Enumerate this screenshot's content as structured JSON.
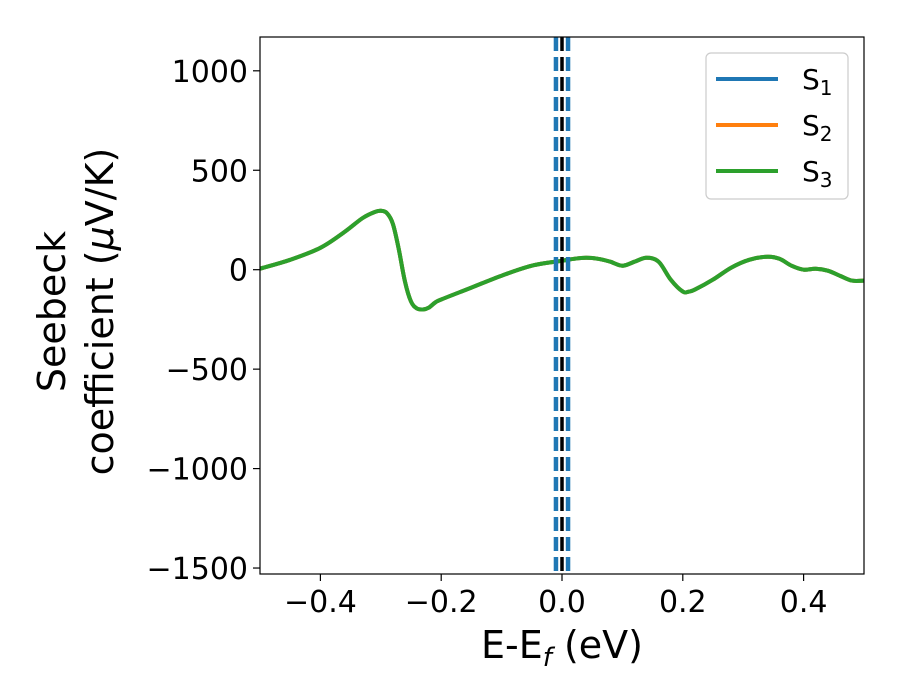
{
  "chart_data": {
    "type": "line",
    "xlabel": "E-E",
    "xlabel_sub": "f",
    "xlabel_unit": " (eV)",
    "ylabel_line1": "Seebeck",
    "ylabel_line2": "coefficient  (",
    "ylabel_mu": "μ",
    "ylabel_unit": "V/K)",
    "xlim": [
      -0.5,
      0.5
    ],
    "ylim": [
      -1530,
      1170
    ],
    "xticks": [
      -0.4,
      -0.2,
      0.0,
      0.2,
      0.4
    ],
    "xtick_labels": [
      "−0.4",
      "−0.2",
      "0.0",
      "0.2",
      "0.4"
    ],
    "yticks": [
      -1500,
      -1000,
      -500,
      0,
      500,
      1000
    ],
    "ytick_labels": [
      "−1500",
      "−1000",
      "−500",
      "0",
      "500",
      "1000"
    ],
    "grid": false,
    "legend_position": "top-right",
    "x": [
      -0.5,
      -0.45,
      -0.4,
      -0.36,
      -0.33,
      -0.31,
      -0.3,
      -0.29,
      -0.28,
      -0.27,
      -0.26,
      -0.25,
      -0.24,
      -0.23,
      -0.22,
      -0.21,
      -0.2,
      -0.15,
      -0.1,
      -0.05,
      0.0,
      0.02,
      0.04,
      0.06,
      0.08,
      0.1,
      0.12,
      0.14,
      0.16,
      0.18,
      0.2,
      0.21,
      0.22,
      0.25,
      0.28,
      0.31,
      0.34,
      0.36,
      0.38,
      0.4,
      0.42,
      0.44,
      0.46,
      0.48,
      0.5
    ],
    "series": [
      {
        "name": "S",
        "sub": "1",
        "color": "#1f77b4",
        "values": [
          5,
          50,
          110,
          190,
          260,
          290,
          296,
          285,
          230,
          100,
          -60,
          -160,
          -195,
          -200,
          -190,
          -165,
          -150,
          -90,
          -30,
          20,
          45,
          55,
          60,
          55,
          40,
          20,
          40,
          60,
          40,
          -50,
          -110,
          -110,
          -100,
          -50,
          10,
          50,
          65,
          55,
          20,
          0,
          5,
          -5,
          -30,
          -55,
          -55
        ]
      },
      {
        "name": "S",
        "sub": "2",
        "color": "#ff7f0e",
        "values": [
          5,
          50,
          110,
          190,
          260,
          290,
          296,
          285,
          230,
          100,
          -60,
          -160,
          -195,
          -200,
          -190,
          -165,
          -150,
          -90,
          -30,
          20,
          45,
          55,
          60,
          55,
          40,
          20,
          40,
          60,
          40,
          -50,
          -110,
          -110,
          -100,
          -50,
          10,
          50,
          65,
          55,
          20,
          0,
          5,
          -5,
          -30,
          -55,
          -55
        ]
      },
      {
        "name": "S",
        "sub": "3",
        "color": "#2ca02c",
        "values": [
          5,
          50,
          110,
          190,
          260,
          290,
          296,
          285,
          230,
          100,
          -60,
          -160,
          -195,
          -200,
          -190,
          -165,
          -150,
          -90,
          -30,
          20,
          45,
          55,
          60,
          55,
          40,
          20,
          40,
          60,
          40,
          -50,
          -110,
          -110,
          -100,
          -50,
          10,
          50,
          65,
          55,
          20,
          0,
          5,
          -5,
          -30,
          -55,
          -55
        ]
      }
    ],
    "vlines": [
      {
        "x": -0.01,
        "style": "dashed",
        "color": "#1f77b4"
      },
      {
        "x": 0.01,
        "style": "dashed",
        "color": "#1f77b4"
      },
      {
        "x": 0.0,
        "style": "dashed",
        "color": "#000000"
      }
    ]
  }
}
